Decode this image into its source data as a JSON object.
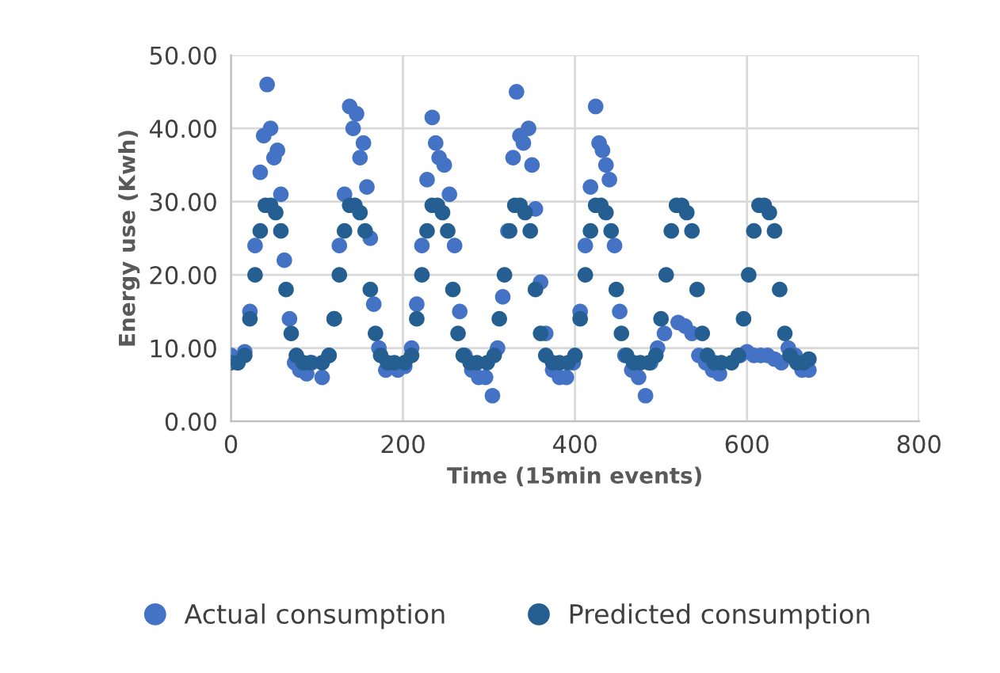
{
  "chart_data": {
    "type": "scatter",
    "xlabel": "Time (15min events)",
    "ylabel": "Energy use (Kwh)",
    "xlim": [
      0,
      800
    ],
    "xticks": [
      0,
      200,
      400,
      600,
      800
    ],
    "ylim": [
      0,
      50
    ],
    "yticks": [
      {
        "value": 0,
        "label": "0.00"
      },
      {
        "value": 10,
        "label": "10.00"
      },
      {
        "value": 20,
        "label": "20.00"
      },
      {
        "value": 30,
        "label": "30.00"
      },
      {
        "value": 40,
        "label": "40.00"
      },
      {
        "value": 50,
        "label": "50.00"
      }
    ],
    "grid": true,
    "legend": "bottom",
    "marker": "circle",
    "series": [
      {
        "name": "Actual consumption",
        "color": "#4472c4",
        "x": [
          0,
          8,
          16,
          22,
          28,
          34,
          38,
          42,
          46,
          50,
          54,
          58,
          62,
          68,
          74,
          80,
          88,
          94,
          106,
          114,
          120,
          126,
          132,
          138,
          142,
          146,
          150,
          154,
          158,
          162,
          166,
          172,
          180,
          194,
          202,
          210,
          216,
          222,
          228,
          234,
          238,
          242,
          248,
          254,
          260,
          266,
          272,
          280,
          288,
          296,
          304,
          310,
          316,
          322,
          328,
          332,
          336,
          340,
          346,
          350,
          354,
          360,
          366,
          374,
          382,
          390,
          398,
          406,
          412,
          418,
          424,
          428,
          432,
          436,
          440,
          446,
          452,
          458,
          466,
          474,
          482,
          488,
          496,
          504,
          520,
          528,
          536,
          544,
          552,
          560,
          568,
          592,
          600,
          608,
          616,
          624,
          632,
          640,
          648,
          656,
          664,
          672
        ],
        "values": [
          9,
          8,
          9.5,
          15,
          24,
          34,
          39,
          46,
          40,
          36,
          37,
          31,
          22,
          14,
          8,
          7,
          6.5,
          8,
          6,
          9,
          14,
          24,
          31,
          43,
          40,
          42,
          36,
          38,
          32,
          25,
          16,
          10,
          7,
          7,
          7.5,
          10,
          16,
          24,
          33,
          41.5,
          38,
          36,
          35,
          31,
          24,
          15,
          9,
          7,
          6,
          6,
          3.5,
          10,
          17,
          26,
          36,
          45,
          39,
          38,
          40,
          35,
          29,
          19,
          12,
          7,
          6,
          6,
          8,
          15,
          24,
          32,
          43,
          38,
          37,
          35,
          33,
          24,
          15,
          9,
          7,
          6,
          3.5,
          8,
          10,
          12,
          13.5,
          13,
          12,
          9,
          8,
          7,
          6.5,
          9,
          9.5,
          9,
          9,
          9,
          8.5,
          8,
          10,
          9,
          7,
          7
        ]
      },
      {
        "name": "Predicted consumption",
        "color": "#255e91",
        "x": [
          0,
          8,
          16,
          22,
          28,
          34,
          40,
          46,
          52,
          58,
          64,
          70,
          76,
          84,
          92,
          106,
          114,
          120,
          126,
          132,
          138,
          144,
          150,
          156,
          162,
          168,
          174,
          182,
          190,
          202,
          210,
          216,
          222,
          228,
          234,
          240,
          246,
          252,
          258,
          264,
          270,
          278,
          286,
          298,
          306,
          312,
          318,
          324,
          330,
          336,
          342,
          348,
          354,
          360,
          366,
          374,
          382,
          392,
          400,
          406,
          412,
          418,
          424,
          430,
          436,
          442,
          448,
          454,
          460,
          468,
          476,
          486,
          494,
          500,
          506,
          512,
          518,
          524,
          530,
          536,
          542,
          548,
          554,
          562,
          570,
          582,
          590,
          596,
          602,
          608,
          614,
          620,
          626,
          632,
          638,
          644,
          650,
          658,
          666,
          672
        ],
        "values": [
          8,
          8,
          9,
          14,
          20,
          26,
          29.5,
          29.5,
          28.5,
          26,
          18,
          12,
          9,
          8,
          8,
          8,
          9,
          14,
          20,
          26,
          29.5,
          29.5,
          28.5,
          26,
          18,
          12,
          9,
          8,
          8,
          8,
          9,
          14,
          20,
          26,
          29.5,
          29.5,
          28.5,
          26,
          18,
          12,
          9,
          8,
          8,
          8,
          9,
          14,
          20,
          26,
          29.5,
          29.5,
          28.5,
          26,
          18,
          12,
          9,
          8,
          8,
          8,
          9,
          14,
          20,
          26,
          29.5,
          29.5,
          28.5,
          26,
          18,
          12,
          9,
          8,
          8,
          8,
          9,
          14,
          20,
          26,
          29.5,
          29.5,
          28.5,
          26,
          18,
          12,
          9,
          8,
          8,
          8,
          9,
          14,
          20,
          26,
          29.5,
          29.5,
          28.5,
          26,
          18,
          12,
          9,
          8,
          8,
          8.5
        ]
      }
    ]
  }
}
